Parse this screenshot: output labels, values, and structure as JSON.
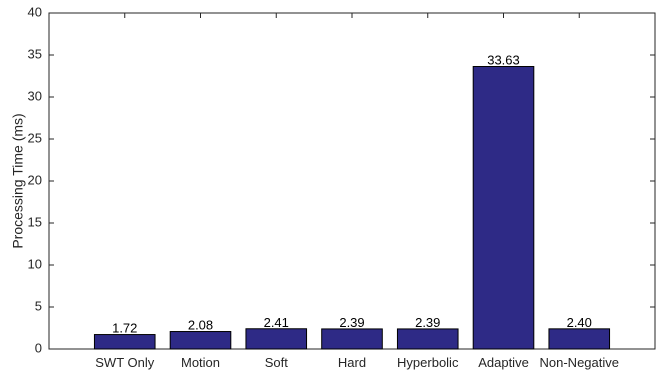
{
  "chart_data": {
    "type": "bar",
    "title": "",
    "xlabel": "",
    "ylabel": "Processing Time (ms)",
    "categories": [
      "SWT Only",
      "Motion",
      "Soft",
      "Hard",
      "Hyperbolic",
      "Adaptive",
      "Non-Negative"
    ],
    "values": [
      1.72,
      2.08,
      2.41,
      2.39,
      2.39,
      33.63,
      2.4
    ],
    "data_labels": [
      "1.72",
      "2.08",
      "2.41",
      "2.39",
      "2.39",
      "33.63",
      "2.40"
    ],
    "ylim": [
      0,
      40
    ],
    "yticks": [
      0,
      5,
      10,
      15,
      20,
      25,
      30,
      35,
      40
    ],
    "grid": false,
    "legend": "none",
    "bar_color": "#2e2a86",
    "bar_edge_color": "#000000"
  }
}
